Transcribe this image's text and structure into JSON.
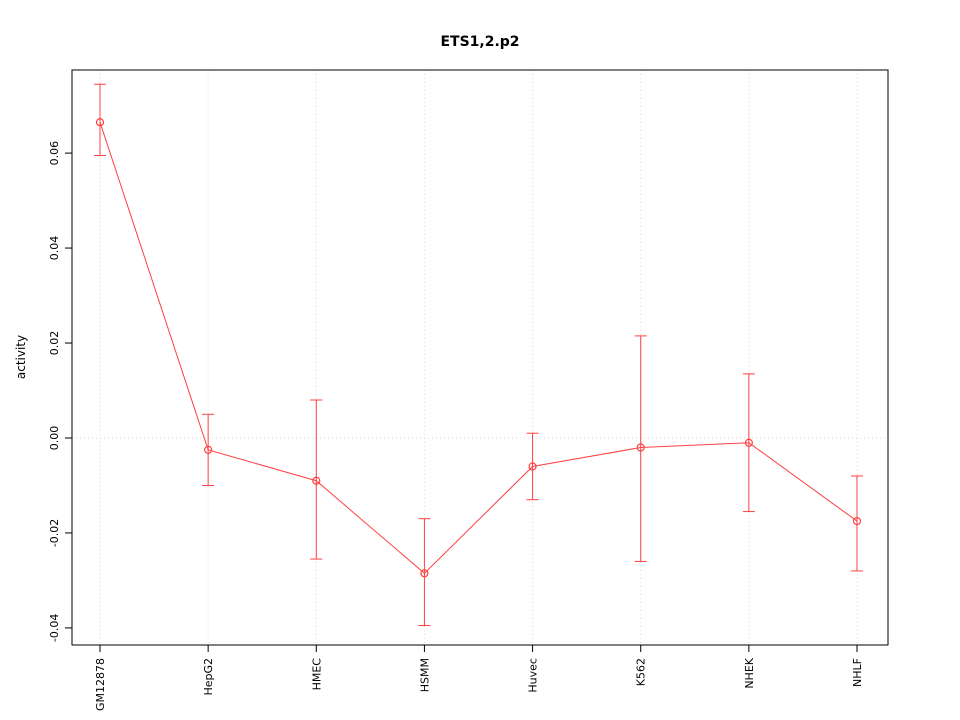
{
  "chart_data": {
    "type": "line",
    "title": "ETS1,2.p2",
    "ylabel": "activity",
    "xlabel": "",
    "categories": [
      "GM12878",
      "HepG2",
      "HMEC",
      "HSMM",
      "Huvec",
      "K562",
      "NHEK",
      "NHLF"
    ],
    "series": [
      {
        "name": "activity",
        "values": [
          0.0665,
          -0.0025,
          -0.009,
          -0.0285,
          -0.006,
          -0.002,
          -0.001,
          -0.0175
        ],
        "err_low": [
          0.0595,
          -0.01,
          -0.0255,
          -0.0395,
          -0.013,
          -0.026,
          -0.0155,
          -0.028
        ],
        "err_high": [
          0.0745,
          0.005,
          0.008,
          -0.017,
          0.001,
          0.0215,
          0.0135,
          -0.008
        ]
      }
    ],
    "y_ticks": [
      -0.04,
      -0.02,
      0.0,
      0.02,
      0.04,
      0.06
    ],
    "ylim": [
      -0.0436,
      0.0775
    ],
    "zero_line": 0,
    "grid": "dotted vertical line at each category and dotted horizontal line at zero",
    "legend": "none",
    "colors": {
      "series": "#ff4040",
      "grid": "#d8d8d8",
      "border": "#000000",
      "background": "#ffffff"
    }
  }
}
